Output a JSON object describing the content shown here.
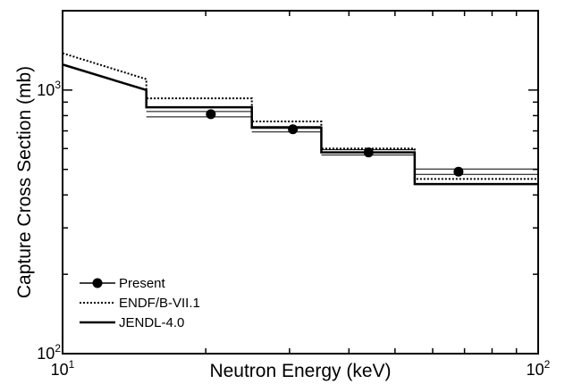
{
  "chart_data": {
    "type": "line",
    "title": "",
    "xlabel": "Neutron Energy (keV)",
    "ylabel": "Capture Cross Section (mb)",
    "xscale": "log",
    "yscale": "log",
    "xlim": [
      10,
      100
    ],
    "ylim": [
      100,
      2000
    ],
    "x_ticks": [
      {
        "base": "10",
        "exp": "1",
        "value": 10
      },
      {
        "base": "10",
        "exp": "2",
        "value": 100
      }
    ],
    "y_ticks": [
      {
        "base": "10",
        "exp": "2",
        "value": 100
      },
      {
        "base": "10",
        "exp": "3",
        "value": 1000
      }
    ],
    "legend_position": "bottom-left",
    "series": [
      {
        "name": "Present",
        "style": "points-with-horizontal-error-bars",
        "color": "#000000",
        "points": [
          {
            "x": 20.5,
            "y": 810,
            "x_low": 15,
            "x_high": 25
          },
          {
            "x": 30.5,
            "y": 710,
            "x_low": 25,
            "x_high": 35
          },
          {
            "x": 44,
            "y": 580,
            "x_low": 35,
            "x_high": 55
          },
          {
            "x": 68,
            "y": 490,
            "x_low": 55,
            "x_high": 100
          }
        ]
      },
      {
        "name": "ENDF/B-VII.1",
        "style": "dotted",
        "color": "#000000",
        "x": [
          10,
          15,
          15,
          25,
          25,
          35,
          35,
          55,
          55,
          100
        ],
        "y": [
          1380,
          1100,
          930,
          930,
          760,
          760,
          600,
          600,
          460,
          460
        ]
      },
      {
        "name": "JENDL-4.0",
        "style": "solid",
        "color": "#000000",
        "x": [
          10,
          15,
          15,
          25,
          25,
          35,
          35,
          55,
          55,
          100
        ],
        "y": [
          1250,
          1000,
          860,
          860,
          720,
          720,
          580,
          580,
          440,
          440
        ]
      }
    ]
  }
}
